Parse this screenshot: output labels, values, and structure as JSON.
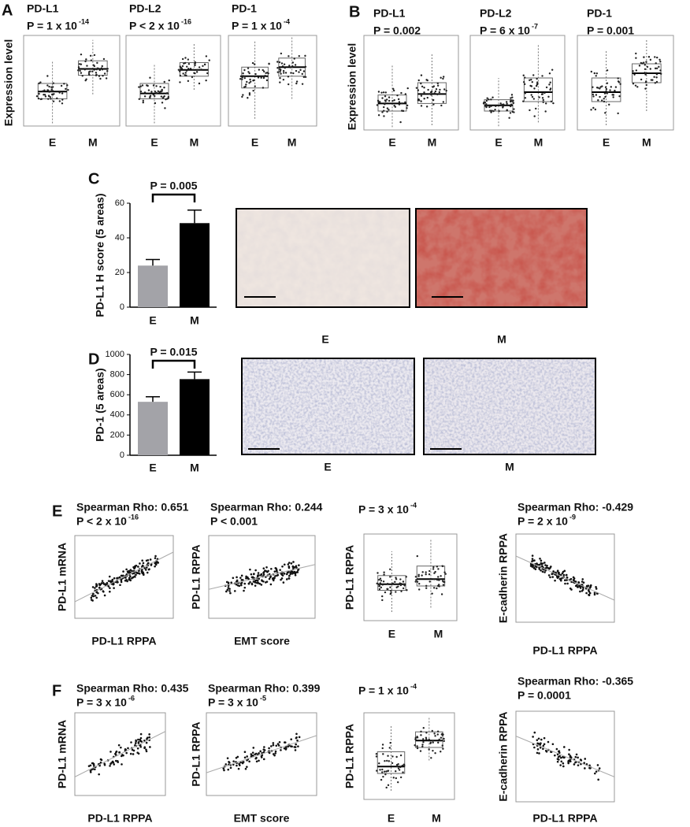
{
  "figure": {
    "A": {
      "letter": "A",
      "y_label": "Expression level",
      "plots": [
        {
          "title": "PD-L1",
          "p": "P = 1 x 10",
          "p_exp": "-14",
          "x_labels": [
            "E",
            "M"
          ]
        },
        {
          "title": "PD-L2",
          "p": "P < 2 x 10",
          "p_exp": "-16",
          "x_labels": [
            "E",
            "M"
          ]
        },
        {
          "title": "PD-1",
          "p": "P = 1 x 10",
          "p_exp": "-4",
          "x_labels": [
            "E",
            "M"
          ]
        }
      ]
    },
    "B": {
      "letter": "B",
      "y_label": "Expression level",
      "plots": [
        {
          "title": "PD-L1",
          "p": "P = 0.002",
          "x_labels": [
            "E",
            "M"
          ]
        },
        {
          "title": "PD-L2",
          "p": "P = 6 x 10",
          "p_exp": "-7",
          "x_labels": [
            "E",
            "M"
          ]
        },
        {
          "title": "PD-1",
          "p": "P = 0.001",
          "x_labels": [
            "E",
            "M"
          ]
        }
      ]
    },
    "C": {
      "letter": "C",
      "image_labels": [
        "E",
        "M"
      ]
    },
    "D": {
      "letter": "D",
      "image_labels": [
        "E",
        "M"
      ]
    },
    "E": {
      "letter": "E",
      "plots": [
        {
          "title": "Spearman Rho: 0.651",
          "p": "P < 2 x 10",
          "p_exp": "-16",
          "x_label": "PD-L1 RPPA",
          "y_label": "PD-L1 mRNA"
        },
        {
          "title": "Spearman Rho: 0.244",
          "p": "P < 0.001",
          "x_label": "EMT score",
          "y_label": "PD-L1 RPPA"
        },
        {
          "p": "P = 3 x 10",
          "p_exp": "-4",
          "x_labels": [
            "E",
            "M"
          ],
          "y_label": "PD-L1 RPPA"
        },
        {
          "title": "Spearman Rho: -0.429",
          "p": "P = 2 x 10",
          "p_exp": "-9",
          "x_label": "PD-L1 RPPA",
          "y_label": "E-cadherin RPPA"
        }
      ]
    },
    "F": {
      "letter": "F",
      "plots": [
        {
          "title": "Spearman Rho: 0.435",
          "p": "P = 3 x 10",
          "p_exp": "-6",
          "x_label": "PD-L1 RPPA",
          "y_label": "PD-L1 mRNA"
        },
        {
          "title": "Spearman Rho: 0.399",
          "p": "P = 3 x 10",
          "p_exp": "-5",
          "x_label": "EMT score",
          "y_label": "PD-L1 RPPA"
        },
        {
          "p": "P = 1 x 10",
          "p_exp": "-4",
          "x_labels": [
            "E",
            "M"
          ],
          "y_label": "PD-L1 RPPA"
        },
        {
          "title": "Spearman Rho: -0.365",
          "p": "P = 0.0001",
          "x_label": "PD-L1 RPPA",
          "y_label": "E-cadherin RPPA"
        }
      ]
    }
  },
  "chart_data": [
    {
      "type": "bar",
      "annotation": "P = 0.005",
      "y_label": "PD-L1 H score (5 areas)",
      "categories": [
        "E",
        "M"
      ],
      "values": [
        24,
        48.5
      ],
      "errors": [
        3.5,
        7.5
      ],
      "colors": [
        "#a3a3a8",
        "#000000"
      ],
      "ylim": [
        0,
        60
      ],
      "yticks": [
        0,
        20,
        40,
        60
      ]
    },
    {
      "type": "bar",
      "annotation": "P = 0.015",
      "y_label": "PD-1 (5 areas)",
      "categories": [
        "E",
        "M"
      ],
      "values": [
        530,
        755
      ],
      "errors": [
        50,
        70
      ],
      "colors": [
        "#a3a3a8",
        "#000000"
      ],
      "ylim": [
        0,
        1000
      ],
      "yticks": [
        0,
        200,
        400,
        600,
        800,
        1000
      ]
    }
  ]
}
